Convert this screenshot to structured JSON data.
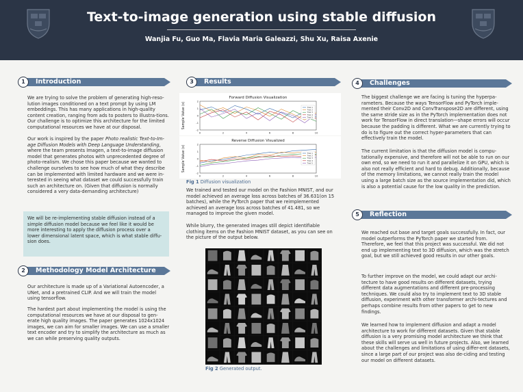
{
  "header": {
    "title": "Text-to-image generation using stable diffusion",
    "authors": "Wanjia Fu, Guo Ma, Flavia Maria Galeazzi, Shu Xu, Raisa Axenie"
  },
  "intro": {
    "num": "1",
    "title": "Introduction",
    "p1": "We are trying to solve the problem of generating high-reso-lution images conditioned on a text prompt by using LM embeddings. This has many applications in high-quality content creation, ranging from ads to posters to illustra-tions. Our challenge is to optimize this architecture for the limited computational resources we have at our disposal.",
    "p2_a": "Our work is inspired by the paper ",
    "p2_italic": "Photo realistic Text-to-Im-age Diffusion Models with Deep Language Understanding",
    "p2_b": ", where the team presents Imagen, a text-to-image diffusion model that generates photos with unprecedented degree of photo-realism. We chose this paper because we wanted to challenge ourselves to see how much of what they describe can be implemented with limited hardware and we were in-terested in seeing what dataset we could successfully train such an architecture on. (Given that diffusion is normally considered a very data-demanding architecture)",
    "callout": "We will be re-implementing stable diffusion instead of a simple diffusion model because we feel like it would be more interesting to apply the diffusion process over a lower dimensional latent space, which is what stable diffu-sion does."
  },
  "methodology": {
    "num": "2",
    "title": "Methodology Model Architecture",
    "p1": "Our architecture is made up of a Variational Autoencoder, a UNet, and a pretrained CLIP. And we will train the model using tensorflow.",
    "p2": " The hardest part about implementing the model is using the computational resources we have at our disposal to gen-erate high quality images. The paper generates 1024x1024 images, we can aim for smaller images. We can use a smaller text encoder and try to simplify the architecture as much as we can while preserving quality outputs."
  },
  "results": {
    "num": "3",
    "title": "Results",
    "fig1_label": "Fig 1",
    "fig1_caption": "Diffusion visualization",
    "p1": "We trained and tested our model on the Fashion MNIST, and our model achieved an average loss across batches of 36.631(on 15 batches), while the PyTorch paper that we reimplemented achieved an average loss across batches of 41.481, so we managed to improve the given model.",
    "p2": "While blurry, the generated images still depict identifiable clothing items on the Fashion MNIST dataset, as you can see on the picture of the output below.",
    "fig2_label": "Fig 2",
    "fig2_caption": "Generated output."
  },
  "challenges": {
    "num": "4",
    "title": "Challenges",
    "p1": "The biggest challenge we are facing is tuning the hyperpa-rameters. Because the ways TensorFlow and PyTorch imple-mented their Conv2D and ConvTranspose2D are different, using the same stride size as in the PyTorch implementation does not work for TensorFlow in direct translation—shape errors will occur because the padding is different. What we are currently trying to do is to figure out the correct hyper-parameters that can effectively train the model.",
    "p2": "The current limitation is that the diffusion model is compu-tationally expensive, and therefore will not be able to run on our own end, so we need to run it and parallelize it on GPU, which is also not really efficient and hard to debug. Additionally, because of the memory limitations, we cannot really train the model using a large batch size as the source implementation did, which is also a potential cause for the low quality in the prediction."
  },
  "reflection": {
    "num": "5",
    "title": "Reflection",
    "p1": "We reached out base and target goals successfully. In fact, our model outperforms the PyTorch paper we started from. Therefore, we feel that this project was successful. We did not end up implementing text to 3D diffusion, which was the stretch goal, but we still achieved good results in our other goals.",
    "p2": "To further improve on the model, we could adapt our archi-tecture to have good results on different datasets, trying different data augmentations and different pre-processing techniques. We could also try to implement text to 3D stable diffusion, experiment with other transformer archi-tectures and perhaps combine results from other papers to get to new findings.",
    "p3": " We learned how to implement diffusion and adapt a model architecture to work for different datasets. Given that stable diffusion is a very promising model architecture we think that these skills will serve us well in future projects. Also, we learned about the challenges and limitations of using differ-ent datasets, since a large part of our project was also de-ciding and testing our model on different datasets."
  },
  "chart_data": [
    {
      "type": "line",
      "title": "Forward Diffusion Visualization",
      "ylabel": "Sample Value (x)",
      "xlabel": "",
      "x_ticks": [
        "0",
        "2",
        "4",
        "6",
        "8",
        "10"
      ],
      "y_ticks": [
        "2",
        "1",
        "0",
        "-1",
        "-2"
      ],
      "legend": "right",
      "series": [
        {
          "name": "Trial 1",
          "values": [
            0.8,
            1.2,
            0.5,
            1.4,
            0.9,
            0.2,
            1.0,
            0.4,
            -0.3,
            0.6,
            -0.2
          ]
        },
        {
          "name": "Trial 2",
          "values": [
            1.5,
            0.6,
            1.1,
            0.3,
            1.2,
            0.7,
            -0.1,
            0.9,
            0.2,
            -0.6,
            0.4
          ]
        },
        {
          "name": "Trial 3",
          "values": [
            0.2,
            0.9,
            -0.4,
            0.6,
            0.1,
            1.1,
            0.3,
            -0.5,
            0.7,
            -0.1,
            -0.8
          ]
        },
        {
          "name": "Trial 4",
          "values": [
            -0.3,
            0.4,
            0.8,
            -0.2,
            0.5,
            -0.6,
            0.6,
            0.1,
            -0.9,
            0.3,
            -0.4
          ]
        },
        {
          "name": "Trial 5",
          "values": [
            1.0,
            -0.2,
            0.3,
            0.9,
            -0.4,
            0.4,
            -0.7,
            0.5,
            0.0,
            -1.0,
            0.2
          ]
        }
      ],
      "colors": [
        "#3a6fb0",
        "#e08a2c",
        "#3a9a4a",
        "#c23a3a",
        "#8a5ab5"
      ]
    },
    {
      "type": "line",
      "title": "Reverse Diffusion Visualized",
      "ylabel": "Sample Value (x)",
      "xlabel": "",
      "x_ticks": [
        "0",
        "2",
        "4",
        "6",
        "8",
        "10"
      ],
      "y_ticks": [
        "2",
        "1",
        "0",
        "-1",
        "-2"
      ],
      "legend": "right",
      "series": [
        {
          "name": "Trial 1",
          "values": [
            -0.6,
            -0.3,
            -0.1,
            0.2,
            0.5,
            0.7,
            0.9,
            0.8,
            1.1,
            1.2,
            1.3
          ]
        },
        {
          "name": "Trial 2",
          "values": [
            -0.2,
            -0.5,
            0.1,
            0.3,
            0.1,
            0.6,
            0.5,
            0.9,
            0.8,
            1.0,
            0.9
          ]
        },
        {
          "name": "Trial 3",
          "values": [
            -0.9,
            -0.6,
            -0.4,
            -0.2,
            0.1,
            0.3,
            0.2,
            0.5,
            0.6,
            0.7,
            0.6
          ]
        },
        {
          "name": "Trial 4",
          "values": [
            -0.4,
            -0.1,
            -0.3,
            0.0,
            -0.1,
            0.2,
            0.4,
            0.3,
            0.4,
            0.3,
            0.5
          ]
        },
        {
          "name": "Trial 5",
          "values": [
            -1.1,
            -0.8,
            -0.7,
            -0.5,
            -0.3,
            -0.2,
            0.0,
            0.1,
            0.2,
            0.1,
            0.2
          ]
        }
      ],
      "colors": [
        "#3a6fb0",
        "#e08a2c",
        "#3a9a4a",
        "#c23a3a",
        "#8a5ab5"
      ]
    }
  ],
  "figure_grid": {
    "rows": 8,
    "cols": 8,
    "description": "generated-clothing-samples"
  }
}
